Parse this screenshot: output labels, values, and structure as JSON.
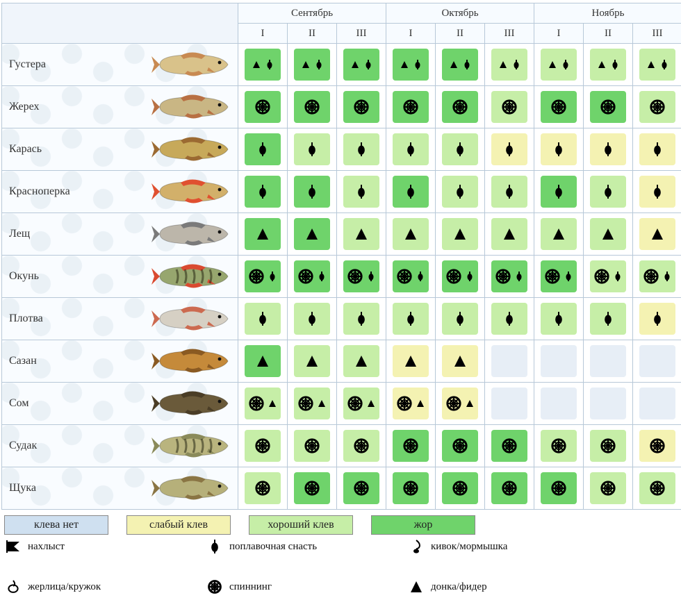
{
  "months": [
    "Сентябрь",
    "Октябрь",
    "Ноябрь"
  ],
  "decades": [
    "I",
    "II",
    "III"
  ],
  "colors": {
    "none": "#cfe0f0",
    "weak": "#f4f2b2",
    "good": "#c6eea7",
    "best": "#6fd36b",
    "grid_border": "#b7c8d8"
  },
  "icons": {
    "float": {
      "glyph": "float"
    },
    "sink": {
      "glyph": "sink"
    },
    "spin": {
      "glyph": "spin"
    },
    "fly": {
      "glyph": "fly"
    },
    "spoon": {
      "glyph": "spoon"
    },
    "jig": {
      "glyph": "jig"
    }
  },
  "fish": [
    {
      "name": "Густера",
      "tint": "#d9c28a",
      "fins": "#c88a52",
      "tackle": [
        "sink",
        "float"
      ],
      "cells": [
        "best",
        "best",
        "best",
        "best",
        "best",
        "good",
        "good",
        "good",
        "good"
      ]
    },
    {
      "name": "Жерех",
      "tint": "#c9b684",
      "fins": "#b87043",
      "tackle": [
        "spin"
      ],
      "cells": [
        "best",
        "best",
        "best",
        "best",
        "best",
        "good",
        "best",
        "best",
        "good"
      ]
    },
    {
      "name": "Карась",
      "tint": "#c7a95a",
      "fins": "#9b6a32",
      "tackle": [
        "float"
      ],
      "cells": [
        "best",
        "good",
        "good",
        "good",
        "good",
        "weak",
        "weak",
        "weak",
        "weak"
      ]
    },
    {
      "name": "Красноперка",
      "tint": "#d2b06a",
      "fins": "#e05030",
      "tackle": [
        "float"
      ],
      "cells": [
        "best",
        "best",
        "good",
        "best",
        "good",
        "good",
        "best",
        "good",
        "weak"
      ]
    },
    {
      "name": "Лещ",
      "tint": "#bcb6aa",
      "fins": "#7a7a7a",
      "tackle": [
        "sink"
      ],
      "cells": [
        "best",
        "best",
        "good",
        "good",
        "good",
        "good",
        "good",
        "good",
        "weak"
      ]
    },
    {
      "name": "Окунь",
      "tint": "#97a66e",
      "fins": "#d94a30",
      "stripes": true,
      "tackle": [
        "spin",
        "float"
      ],
      "cells": [
        "best",
        "best",
        "best",
        "best",
        "best",
        "best",
        "best",
        "good",
        "good"
      ]
    },
    {
      "name": "Плотва",
      "tint": "#d6d0c4",
      "fins": "#cc6a50",
      "tackle": [
        "float"
      ],
      "cells": [
        "good",
        "good",
        "good",
        "good",
        "good",
        "good",
        "good",
        "good",
        "weak"
      ]
    },
    {
      "name": "Сазан",
      "tint": "#c58a3a",
      "fins": "#8a5a22",
      "tackle": [
        "sink"
      ],
      "cells": [
        "best",
        "good",
        "good",
        "weak",
        "weak",
        "",
        "",
        "",
        ""
      ]
    },
    {
      "name": "Сом",
      "tint": "#6a5a3a",
      "fins": "#4a3d26",
      "tackle": [
        "spin",
        "sink"
      ],
      "cells": [
        "good",
        "good",
        "good",
        "weak",
        "weak",
        "",
        "",
        "",
        ""
      ]
    },
    {
      "name": "Судак",
      "tint": "#b9b47e",
      "fins": "#8a8a5a",
      "stripes": true,
      "tackle": [
        "spin"
      ],
      "cells": [
        "good",
        "good",
        "good",
        "best",
        "best",
        "best",
        "good",
        "good",
        "weak"
      ]
    },
    {
      "name": "Щука",
      "tint": "#b6b07a",
      "fins": "#8a7544",
      "tackle": [
        "spin"
      ],
      "cells": [
        "good",
        "best",
        "best",
        "best",
        "best",
        "best",
        "best",
        "good",
        "good"
      ]
    }
  ],
  "legend_bite": [
    {
      "key": "none",
      "label": "клева нет"
    },
    {
      "key": "weak",
      "label": "слабый клев"
    },
    {
      "key": "good",
      "label": "хороший клев"
    },
    {
      "key": "best",
      "label": "жор"
    }
  ],
  "legend_tackle": [
    {
      "glyph": "fly",
      "label": "нахлыст"
    },
    {
      "glyph": "float",
      "label": "поплавочная снасть"
    },
    {
      "glyph": "jig",
      "label": "кивок/мормышка"
    },
    {
      "glyph": "spoon",
      "label": "жерлица/кружок"
    },
    {
      "glyph": "spin",
      "label": "спиннинг"
    },
    {
      "glyph": "sink",
      "label": "донка/фидер"
    }
  ]
}
